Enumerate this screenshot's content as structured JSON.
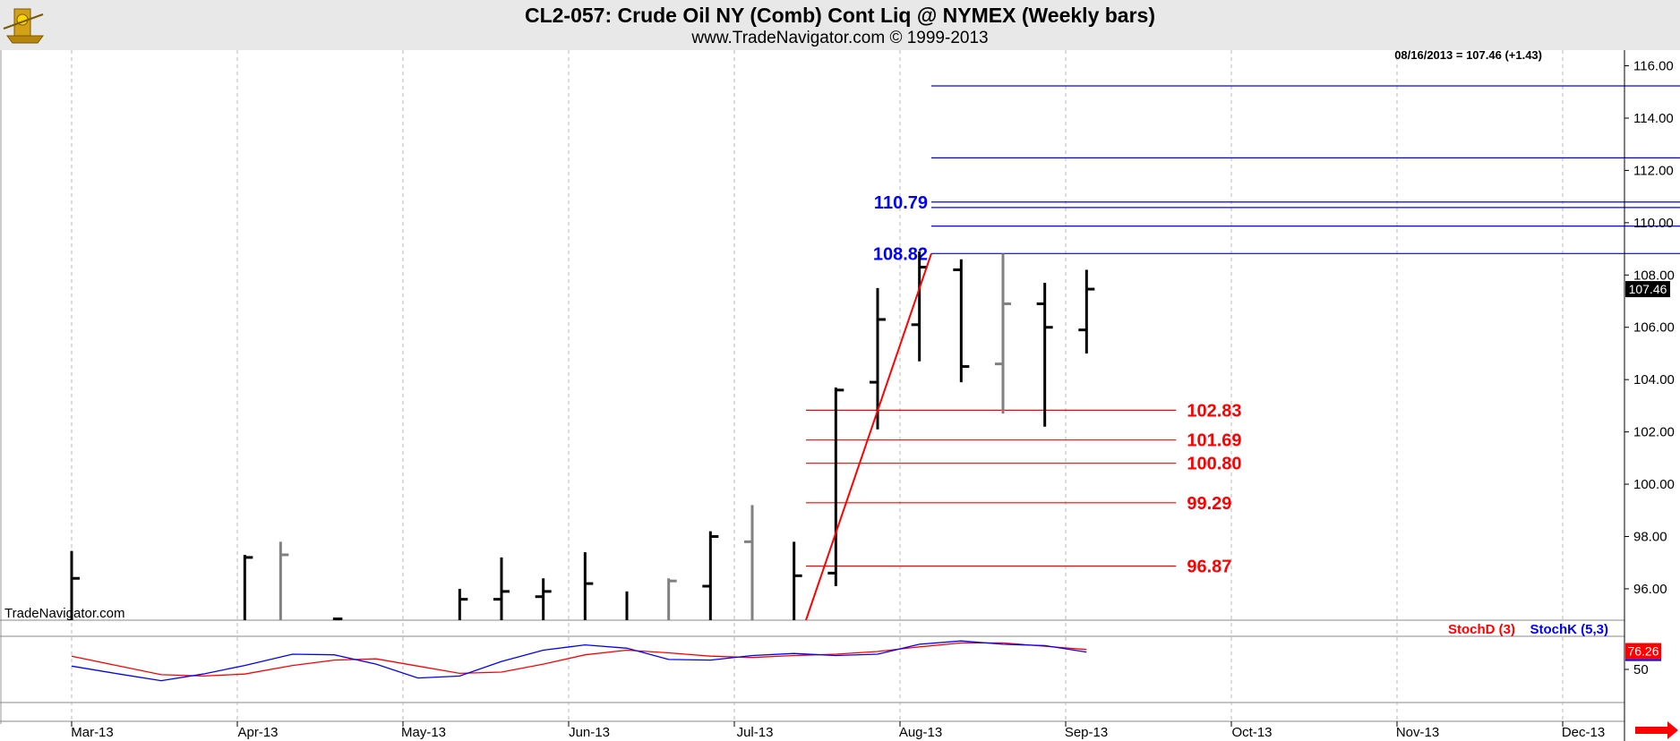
{
  "header": {
    "title": "CL2-057:  Crude Oil NY (Comb) Cont Liq @ NYMEX  (Weekly bars)",
    "subtitle": "www.TradeNavigator.com © 1999-2013"
  },
  "chart_data": [
    {
      "type": "ohlc",
      "title": "CL2-057:  Crude Oil NY (Comb) Cont Liq @ NYMEX  (Weekly bars)",
      "watermark": "TradeNavigator.com",
      "last_value_text": "08/16/2013 = 107.46 (+1.43)",
      "last_value_tag": "107.46",
      "ylim": [
        94.8,
        116.6
      ],
      "y_ticks": [
        "116.00",
        "114.00",
        "112.00",
        "110.00",
        "108.00",
        "106.00",
        "104.00",
        "102.00",
        "100.00",
        "98.00",
        "96.00"
      ],
      "x_ticks": [
        "Mar-13",
        "Apr-13",
        "May-13",
        "Jun-13",
        "Jul-13",
        "Aug-13",
        "Sep-13",
        "Oct-13",
        "Nov-13",
        "Dec-13"
      ],
      "bars": [
        {
          "x": "2013-02-27",
          "open": null,
          "high": 97.45,
          "low": 94.8,
          "close": 96.4,
          "color": "#000000"
        },
        {
          "x": "2013-03-28",
          "open": null,
          "high": 97.3,
          "low": 94.8,
          "close": 97.2,
          "color": "#000000"
        },
        {
          "x": "2013-04-03",
          "open": null,
          "high": 97.8,
          "low": 94.8,
          "close": 97.3,
          "color": "#808080"
        },
        {
          "x": "2013-04-12",
          "open": null,
          "high": 94.9,
          "low": 94.8,
          "close": 94.85,
          "color": "#000000"
        },
        {
          "x": "2013-05-03",
          "open": null,
          "high": 96.0,
          "low": 94.8,
          "close": 95.6,
          "color": "#000000"
        },
        {
          "x": "2013-05-10",
          "open": 95.6,
          "high": 97.2,
          "low": 94.8,
          "close": 95.9,
          "color": "#000000"
        },
        {
          "x": "2013-05-17",
          "open": 95.7,
          "high": 96.4,
          "low": 94.8,
          "close": 95.9,
          "color": "#000000"
        },
        {
          "x": "2013-05-24",
          "open": null,
          "high": 97.4,
          "low": 94.8,
          "close": 96.2,
          "color": "#000000"
        },
        {
          "x": "2013-05-31",
          "open": null,
          "high": 95.9,
          "low": 94.8,
          "close": null,
          "color": "#000000"
        },
        {
          "x": "2013-06-07",
          "open": null,
          "high": 96.4,
          "low": 94.8,
          "close": 96.3,
          "color": "#808080"
        },
        {
          "x": "2013-06-14",
          "open": 96.1,
          "high": 98.2,
          "low": 94.8,
          "close": 98.0,
          "color": "#000000"
        },
        {
          "x": "2013-06-21",
          "open": 97.8,
          "high": 99.2,
          "low": 94.8,
          "close": null,
          "color": "#808080"
        },
        {
          "x": "2013-06-28",
          "open": null,
          "high": 97.8,
          "low": 94.8,
          "close": 96.5,
          "color": "#000000"
        },
        {
          "x": "2013-07-05",
          "open": 96.6,
          "high": 103.7,
          "low": 96.1,
          "close": 103.6,
          "color": "#000000"
        },
        {
          "x": "2013-07-12",
          "open": 103.9,
          "high": 107.5,
          "low": 102.1,
          "close": 106.3,
          "color": "#000000"
        },
        {
          "x": "2013-07-19",
          "open": 106.1,
          "high": 108.9,
          "low": 104.7,
          "close": 108.3,
          "color": "#000000"
        },
        {
          "x": "2013-07-26",
          "open": 108.2,
          "high": 108.6,
          "low": 103.9,
          "close": 104.5,
          "color": "#000000"
        },
        {
          "x": "2013-08-02",
          "open": 104.6,
          "high": 108.82,
          "low": 102.7,
          "close": 106.9,
          "color": "#808080"
        },
        {
          "x": "2013-08-09",
          "open": 106.9,
          "high": 107.7,
          "low": 102.2,
          "close": 106.0,
          "color": "#000000"
        },
        {
          "x": "2013-08-16",
          "open": 105.9,
          "high": 108.2,
          "low": 105.0,
          "close": 107.46,
          "color": "#000000"
        }
      ],
      "trendline": {
        "color": "#ff0000",
        "from": {
          "x": "2013-06-30",
          "y": 94.8
        },
        "to": {
          "x": "2013-07-21",
          "y": 108.82
        }
      },
      "levels": [
        {
          "value": 115.23,
          "label": "115.23",
          "color": "#0000ff",
          "from": "2013-07-21",
          "to": "2013-11-28",
          "label_pos": "right"
        },
        {
          "value": 112.48,
          "label": "112.48",
          "color": "#0000ff",
          "from": "2013-07-21",
          "to": "2013-11-28",
          "label_pos": "right"
        },
        {
          "value": 110.79,
          "label": "110.79",
          "color": "#0000ff",
          "from": "2013-07-21",
          "to": "2013-11-28",
          "label_pos": "left"
        },
        {
          "value": 110.58,
          "label": "110.58",
          "color": "#0000ff",
          "from": "2013-07-21",
          "to": "2013-11-28",
          "label_pos": "right"
        },
        {
          "value": 109.87,
          "label": "109.87",
          "color": "#0000ff",
          "from": "2013-07-21",
          "to": "2013-11-28",
          "label_pos": "right"
        },
        {
          "value": 108.82,
          "label": "108.82",
          "color": "#0000ff",
          "from": "2013-07-21",
          "to": "2013-11-28",
          "label_pos": "left"
        },
        {
          "value": 102.83,
          "label": "102.83",
          "color": "#ff0000",
          "from": "2013-06-30",
          "to": "2013-08-31",
          "label_pos": "right"
        },
        {
          "value": 101.69,
          "label": "101.69",
          "color": "#ff0000",
          "from": "2013-06-30",
          "to": "2013-08-31",
          "label_pos": "right"
        },
        {
          "value": 100.8,
          "label": "100.80",
          "color": "#ff0000",
          "from": "2013-06-30",
          "to": "2013-08-31",
          "label_pos": "right"
        },
        {
          "value": 99.29,
          "label": "99.29",
          "color": "#ff0000",
          "from": "2013-06-30",
          "to": "2013-08-31",
          "label_pos": "right"
        },
        {
          "value": 96.87,
          "label": "96.87",
          "color": "#ff0000",
          "from": "2013-06-30",
          "to": "2013-08-31",
          "label_pos": "right"
        }
      ]
    },
    {
      "type": "line",
      "ylim": [
        0,
        100
      ],
      "y_ticks": [
        "50"
      ],
      "last_value_tag": "76.26",
      "legend_placement": "top-right",
      "series": [
        {
          "name": "StochD (3)",
          "color": "#ff0000",
          "x": [
            "2013-02-27",
            "2013-03-07",
            "2013-03-14",
            "2013-03-21",
            "2013-03-28",
            "2013-04-05",
            "2013-04-12",
            "2013-04-19",
            "2013-04-26",
            "2013-05-03",
            "2013-05-10",
            "2013-05-17",
            "2013-05-24",
            "2013-05-31",
            "2013-06-07",
            "2013-06-14",
            "2013-06-21",
            "2013-06-28",
            "2013-07-05",
            "2013-07-12",
            "2013-07-19",
            "2013-07-26",
            "2013-08-02",
            "2013-08-09",
            "2013-08-16"
          ],
          "values": [
            70,
            55,
            42,
            40,
            43,
            56,
            64,
            66,
            55,
            44,
            46,
            58,
            72,
            79,
            75,
            70,
            68,
            71,
            73,
            77,
            84,
            90,
            90,
            85,
            80
          ]
        },
        {
          "name": "StochK (5,3)",
          "color": "#0000ff",
          "x": [
            "2013-02-27",
            "2013-03-07",
            "2013-03-14",
            "2013-03-21",
            "2013-03-28",
            "2013-04-05",
            "2013-04-12",
            "2013-04-19",
            "2013-04-26",
            "2013-05-03",
            "2013-05-10",
            "2013-05-17",
            "2013-05-24",
            "2013-05-31",
            "2013-06-07",
            "2013-06-14",
            "2013-06-21",
            "2013-06-28",
            "2013-07-05",
            "2013-07-12",
            "2013-07-19",
            "2013-07-26",
            "2013-08-02",
            "2013-08-09",
            "2013-08-16"
          ],
          "values": [
            55,
            43,
            33,
            43,
            56,
            73,
            72,
            58,
            37,
            40,
            62,
            79,
            87,
            82,
            65,
            64,
            71,
            74,
            71,
            73,
            88,
            93,
            88,
            86,
            76.26
          ]
        }
      ]
    }
  ]
}
